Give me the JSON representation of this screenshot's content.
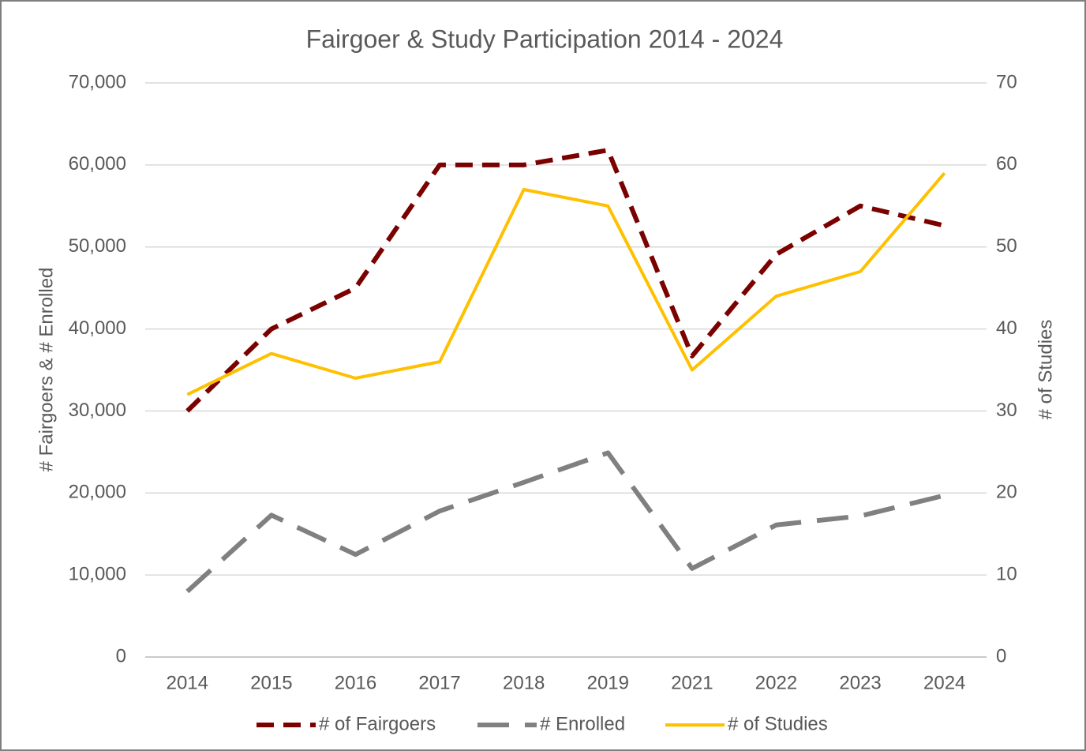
{
  "chart_data": {
    "type": "line",
    "title": "Fairgoer & Study Participation 2014 - 2024",
    "ylabel": "# Fairgoers & # Enrolled",
    "y2label": "# of Studies",
    "categories": [
      "2014",
      "2015",
      "2016",
      "2017",
      "2018",
      "2019",
      "2021",
      "2022",
      "2023",
      "2024"
    ],
    "series": [
      {
        "name": "# of Fairgoers",
        "color": "#7b0000",
        "style": "dashed",
        "values": [
          30000,
          40000,
          45000,
          60000,
          60000,
          61800,
          36700,
          49100,
          55000,
          52600
        ]
      },
      {
        "name": "# Enrolled",
        "color": "#808080",
        "style": "long-dashed",
        "values": [
          8000,
          17300,
          12500,
          17800,
          21300,
          24900,
          10800,
          16100,
          17200,
          19700
        ]
      },
      {
        "name": "# of Studies",
        "color": "#ffc000",
        "style": "solid",
        "axis": "y2",
        "values": [
          32,
          37,
          34,
          36,
          57,
          55,
          35,
          44,
          47,
          59
        ]
      }
    ],
    "ylim": [
      0,
      70000
    ],
    "yticks": [
      0,
      {
        "value": 10000,
        "label": "10,000"
      },
      {
        "value": 20000,
        "label": "20,000"
      },
      {
        "value": 30000,
        "label": "30,000"
      },
      {
        "value": 40000,
        "label": "40,000"
      },
      {
        "value": 50000,
        "label": "50,000"
      },
      {
        "value": 60000,
        "label": "60,000"
      },
      {
        "value": 70000,
        "label": "70,000"
      }
    ],
    "y2lim": [
      0,
      70
    ],
    "y2ticks": [
      0,
      10,
      20,
      30,
      40,
      50,
      60,
      70
    ],
    "grid": true,
    "legend": "bottom"
  }
}
